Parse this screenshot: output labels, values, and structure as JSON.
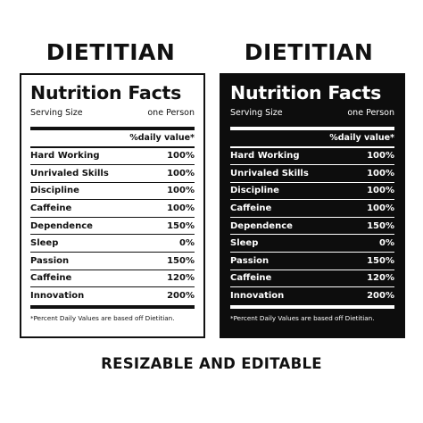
{
  "labels": [
    {
      "heading": "DIETITIAN",
      "theme": "light",
      "title": "Nutrition Facts",
      "serving_label": "Serving Size",
      "serving_value": "one Person",
      "daily_value_header": "%daily value*",
      "rows": [
        {
          "name": "Hard Working",
          "value": "100%"
        },
        {
          "name": "Unrivaled Skills",
          "value": "100%"
        },
        {
          "name": "Discipline",
          "value": "100%"
        },
        {
          "name": "Caffeine",
          "value": "100%"
        },
        {
          "name": "Dependence",
          "value": "150%"
        },
        {
          "name": "Sleep",
          "value": "0%"
        },
        {
          "name": "Passion",
          "value": "150%"
        },
        {
          "name": "Caffeine",
          "value": "120%"
        },
        {
          "name": "Innovation",
          "value": "200%"
        }
      ],
      "footnote": "*Percent Daily Values are based off Dietitian."
    },
    {
      "heading": "DIETITIAN",
      "theme": "dark",
      "title": "Nutrition Facts",
      "serving_label": "Serving Size",
      "serving_value": "one Person",
      "daily_value_header": "%daily value*",
      "rows": [
        {
          "name": "Hard Working",
          "value": "100%"
        },
        {
          "name": "Unrivaled Skills",
          "value": "100%"
        },
        {
          "name": "Discipline",
          "value": "100%"
        },
        {
          "name": "Caffeine",
          "value": "100%"
        },
        {
          "name": "Dependence",
          "value": "150%"
        },
        {
          "name": "Sleep",
          "value": "0%"
        },
        {
          "name": "Passion",
          "value": "150%"
        },
        {
          "name": "Caffeine",
          "value": "120%"
        },
        {
          "name": "Innovation",
          "value": "200%"
        }
      ],
      "footnote": "*Percent Daily Values are based off Dietitian."
    }
  ],
  "tagline": "RESIZABLE AND EDITABLE",
  "colors": {
    "ink": "#111111",
    "dark_background": "#0d0d0d",
    "light_background": "#ffffff"
  }
}
